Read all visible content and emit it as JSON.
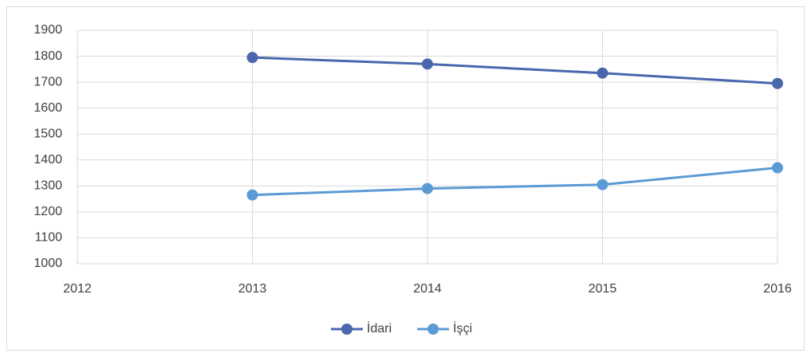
{
  "chart_data": {
    "type": "line",
    "x": [
      2013,
      2014,
      2015,
      2016
    ],
    "series": [
      {
        "name": "İdari",
        "color": "#4a67ad",
        "values": [
          1795,
          1770,
          1735,
          1695
        ]
      },
      {
        "name": "İşçi",
        "color": "#5b9bd5",
        "values": [
          1265,
          1290,
          1305,
          1370
        ]
      }
    ],
    "xlim": [
      2012,
      2016
    ],
    "xticks": [
      2012,
      2013,
      2014,
      2015,
      2016
    ],
    "ylim": [
      1000,
      1900
    ],
    "yticks": [
      1000,
      1100,
      1200,
      1300,
      1400,
      1500,
      1600,
      1700,
      1800,
      1900
    ],
    "grid": true,
    "legend": "bottom"
  }
}
